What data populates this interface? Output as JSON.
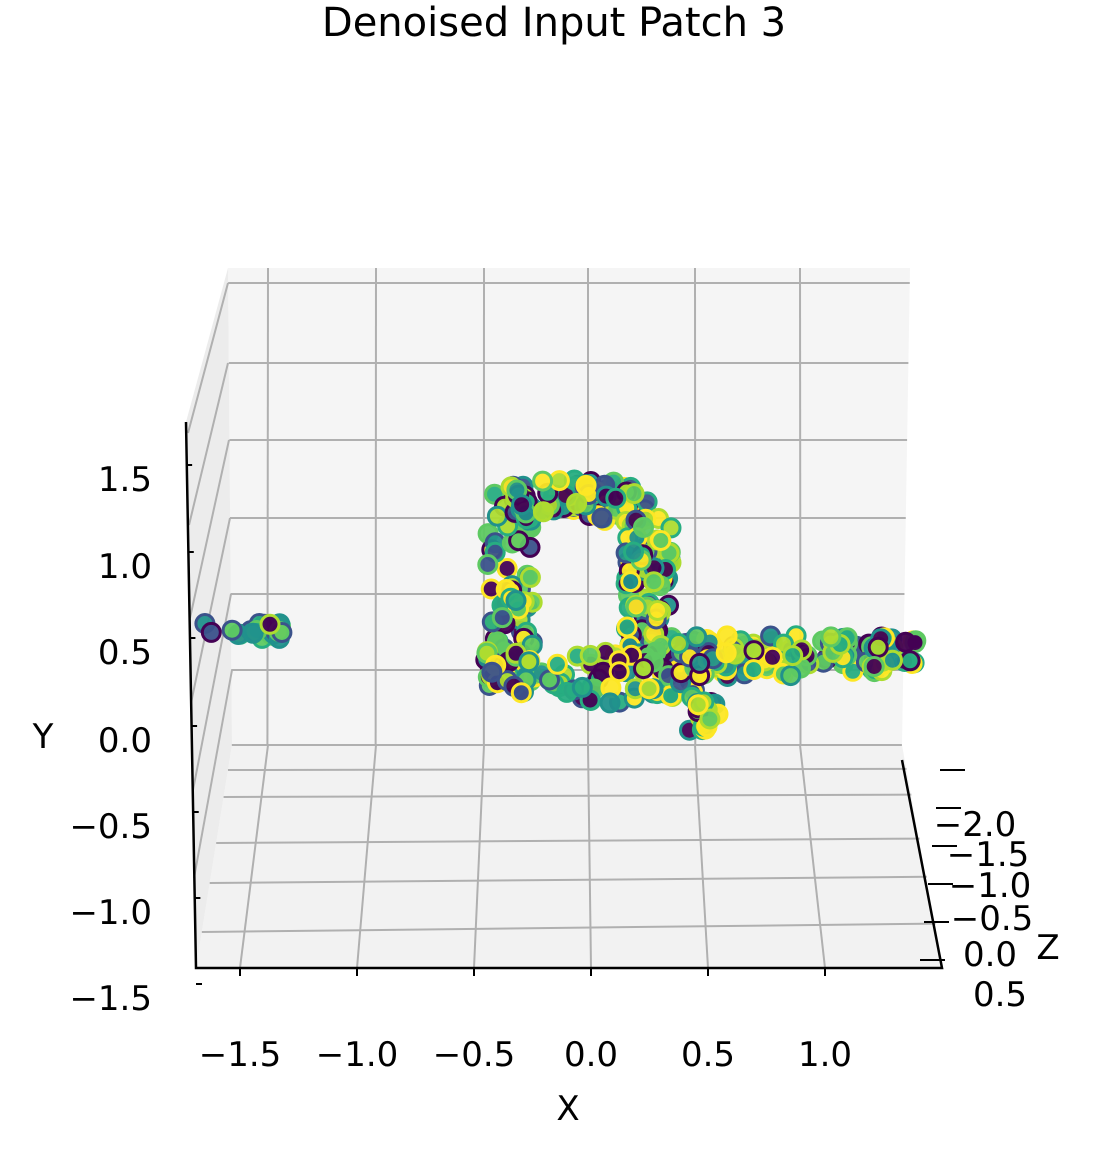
{
  "chart_data": {
    "type": "scatter",
    "projection": "3d",
    "title": "Denoised Input Patch 3",
    "xlabel": "X",
    "ylabel": "Y",
    "zlabel": "Z",
    "x_ticks": [
      "−1.5",
      "−1.0",
      "−0.5",
      "0.0",
      "0.5",
      "1.0"
    ],
    "y_ticks": [
      "−1.5",
      "−1.0",
      "−0.5",
      "0.0",
      "0.5",
      "1.0",
      "1.5"
    ],
    "z_ticks": [
      "0.5",
      "0.0",
      "−0.5",
      "−1.0",
      "−1.5",
      "−2.0"
    ],
    "xlim": [
      -1.7,
      1.4
    ],
    "ylim": [
      -1.5,
      1.8
    ],
    "zlim": [
      -2.3,
      0.7
    ],
    "grid": true,
    "colormap": "viridis",
    "palette": [
      "#440154",
      "#3b528b",
      "#21918c",
      "#27ad81",
      "#5ec962",
      "#addc30",
      "#fde725"
    ],
    "clusters": [
      {
        "name": "left-cluster",
        "x_range": [
          -1.65,
          -1.3
        ],
        "y_range": [
          0.62,
          0.72
        ],
        "count": 22
      },
      {
        "name": "arch-left",
        "x_range": [
          -0.45,
          -0.25
        ],
        "y_range": [
          0.35,
          1.5
        ],
        "count": 90
      },
      {
        "name": "arch-top",
        "x_range": [
          -0.35,
          0.25
        ],
        "y_range": [
          1.3,
          1.55
        ],
        "count": 80
      },
      {
        "name": "arch-right",
        "x_range": [
          0.15,
          0.35
        ],
        "y_range": [
          0.5,
          1.35
        ],
        "count": 80
      },
      {
        "name": "arch-base",
        "x_range": [
          -0.45,
          0.45
        ],
        "y_range": [
          0.25,
          0.55
        ],
        "count": 70
      },
      {
        "name": "right-branch",
        "x_range": [
          0.35,
          1.4
        ],
        "y_range": [
          0.4,
          0.65
        ],
        "count": 110
      },
      {
        "name": "lower-stub",
        "x_range": [
          0.42,
          0.55
        ],
        "y_range": [
          0.05,
          0.3
        ],
        "count": 18
      }
    ]
  }
}
